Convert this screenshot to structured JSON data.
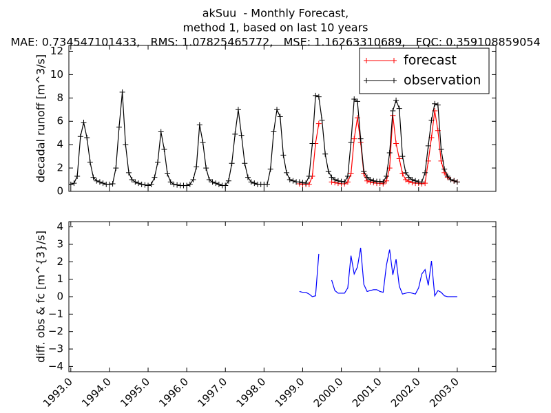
{
  "chart_data": [
    {
      "type": "line",
      "title": "akSuu  - Monthly Forecast,",
      "subtitle": [
        "method 1, based on last 10 years",
        "MAE: 0.734547101433,   RMS: 1.07825465772,   MSE: 1.16263310689,   FQC: 0.359108859054"
      ],
      "y_label": "decadal runoff [m^3/s]",
      "xlim": [
        1992.95,
        2004.0
      ],
      "xticks": [
        1993,
        1994,
        1995,
        1996,
        1997,
        1998,
        1999,
        2000,
        2001,
        2002,
        2003
      ],
      "ylim": [
        0,
        12.5
      ],
      "yticks": [
        0,
        2,
        4,
        6,
        8,
        10,
        12
      ],
      "legend": "upper right",
      "series": [
        {
          "name": "forecast",
          "color": "#ff0000",
          "marker": "+",
          "x": [
            1998.917,
            1999.0,
            1999.083,
            1999.167,
            1999.25,
            1999.333,
            1999.417,
            1999.5,
            1999.583,
            1999.667,
            1999.75,
            1999.833,
            1999.917,
            2000.0,
            2000.083,
            2000.167,
            2000.25,
            2000.333,
            2000.417,
            2000.5,
            2000.583,
            2000.667,
            2000.75,
            2000.833,
            2000.917,
            2001.0,
            2001.083,
            2001.167,
            2001.25,
            2001.333,
            2001.417,
            2001.5,
            2001.583,
            2001.667,
            2001.75,
            2001.833,
            2001.917,
            2002.0,
            2002.083,
            2002.167,
            2002.25,
            2002.333,
            2002.417,
            2002.5,
            2002.583,
            2002.667,
            2002.75,
            2002.833,
            2002.917,
            2003.0
          ],
          "values": [
            0.65,
            0.6,
            0.6,
            0.6,
            1.3,
            4.1,
            5.8,
            null,
            null,
            null,
            0.8,
            0.75,
            0.7,
            0.65,
            0.65,
            0.8,
            1.5,
            4.5,
            6.3,
            4.2,
            1.5,
            0.9,
            0.8,
            0.75,
            0.7,
            0.7,
            0.65,
            0.9,
            2.0,
            6.5,
            4.1,
            2.8,
            1.5,
            1.0,
            0.85,
            0.75,
            0.7,
            0.7,
            0.65,
            0.7,
            2.6,
            4.6,
            6.9,
            5.2,
            2.6,
            1.6,
            1.2,
            1.0,
            0.9,
            0.8
          ]
        },
        {
          "name": "observation",
          "color": "#000000",
          "marker": "+",
          "x": [
            1992.917,
            1993.0,
            1993.083,
            1993.167,
            1993.25,
            1993.333,
            1993.417,
            1993.5,
            1993.583,
            1993.667,
            1993.75,
            1993.833,
            1993.917,
            1994.0,
            1994.083,
            1994.167,
            1994.25,
            1994.333,
            1994.417,
            1994.5,
            1994.583,
            1994.667,
            1994.75,
            1994.833,
            1994.917,
            1995.0,
            1995.083,
            1995.167,
            1995.25,
            1995.333,
            1995.417,
            1995.5,
            1995.583,
            1995.667,
            1995.75,
            1995.833,
            1995.917,
            1996.0,
            1996.083,
            1996.167,
            1996.25,
            1996.333,
            1996.417,
            1996.5,
            1996.583,
            1996.667,
            1996.75,
            1996.833,
            1996.917,
            1997.0,
            1997.083,
            1997.167,
            1997.25,
            1997.333,
            1997.417,
            1997.5,
            1997.583,
            1997.667,
            1997.75,
            1997.833,
            1997.917,
            1998.0,
            1998.083,
            1998.167,
            1998.25,
            1998.333,
            1998.417,
            1998.5,
            1998.583,
            1998.667,
            1998.75,
            1998.833,
            1998.917,
            1999.0,
            1999.083,
            1999.167,
            1999.25,
            1999.333,
            1999.417,
            1999.5,
            1999.583,
            1999.667,
            1999.75,
            1999.833,
            1999.917,
            2000.0,
            2000.083,
            2000.167,
            2000.25,
            2000.333,
            2000.417,
            2000.5,
            2000.583,
            2000.667,
            2000.75,
            2000.833,
            2000.917,
            2001.0,
            2001.083,
            2001.167,
            2001.25,
            2001.333,
            2001.417,
            2001.5,
            2001.583,
            2001.667,
            2001.75,
            2001.833,
            2001.917,
            2002.0,
            2002.083,
            2002.167,
            2002.25,
            2002.333,
            2002.417,
            2002.5,
            2002.583,
            2002.667,
            2002.75,
            2002.833,
            2002.917,
            2003.0
          ],
          "values": [
            0.6,
            0.6,
            0.7,
            1.3,
            4.7,
            5.9,
            4.6,
            2.5,
            1.2,
            0.9,
            0.8,
            0.7,
            0.6,
            0.6,
            0.65,
            2.0,
            5.5,
            8.5,
            4.0,
            1.6,
            1.0,
            0.8,
            0.7,
            0.6,
            0.55,
            0.5,
            0.6,
            1.2,
            2.5,
            5.1,
            3.6,
            1.5,
            0.8,
            0.6,
            0.55,
            0.5,
            0.5,
            0.5,
            0.6,
            1.0,
            2.1,
            5.7,
            4.2,
            2.0,
            1.0,
            0.8,
            0.7,
            0.6,
            0.5,
            0.5,
            0.9,
            2.4,
            4.9,
            7.0,
            4.8,
            2.4,
            1.2,
            0.8,
            0.7,
            0.6,
            0.6,
            0.6,
            0.6,
            1.9,
            5.1,
            7.0,
            6.4,
            3.1,
            1.6,
            1.0,
            0.9,
            0.8,
            0.8,
            0.75,
            0.7,
            1.3,
            4.1,
            8.2,
            8.1,
            6.1,
            3.2,
            1.7,
            1.2,
            1.0,
            0.9,
            0.85,
            0.8,
            1.3,
            4.2,
            7.9,
            7.7,
            4.5,
            1.7,
            1.2,
            1.0,
            0.9,
            0.85,
            0.85,
            0.8,
            1.3,
            3.3,
            6.9,
            7.8,
            7.1,
            3.0,
            1.6,
            1.2,
            1.0,
            0.9,
            0.8,
            0.8,
            1.6,
            3.9,
            6.1,
            7.5,
            7.4,
            3.6,
            1.9,
            1.3,
            1.0,
            0.9,
            0.8
          ]
        }
      ]
    },
    {
      "type": "line",
      "y_label": "diff. obs & fc [m^{3}/s]",
      "xlim": [
        1992.95,
        2004.0
      ],
      "xticks": [
        {
          "value": 1993,
          "label": "1993.0"
        },
        {
          "value": 1994,
          "label": "1994.0"
        },
        {
          "value": 1995,
          "label": "1995.0"
        },
        {
          "value": 1996,
          "label": "1996.0"
        },
        {
          "value": 1997,
          "label": "1997.0"
        },
        {
          "value": 1998,
          "label": "1998.0"
        },
        {
          "value": 1999,
          "label": "1999.0"
        },
        {
          "value": 2000,
          "label": "2000.0"
        },
        {
          "value": 2001,
          "label": "2001.0"
        },
        {
          "value": 2002,
          "label": "2002.0"
        },
        {
          "value": 2003,
          "label": "2003.0"
        }
      ],
      "ylim": [
        -4.3,
        4.3
      ],
      "yticks": [
        {
          "value": -4,
          "label": "−4"
        },
        {
          "value": -3,
          "label": "−3"
        },
        {
          "value": -2,
          "label": "−2"
        },
        {
          "value": -1,
          "label": "−1"
        },
        0,
        1,
        2,
        3,
        4
      ],
      "series": [
        {
          "color": "#0000ff",
          "x": [
            1998.917,
            1999.0,
            1999.083,
            1999.167,
            1999.25,
            1999.333,
            1999.417,
            1999.5,
            1999.583,
            1999.667,
            1999.75,
            1999.833,
            1999.917,
            2000.0,
            2000.083,
            2000.167,
            2000.25,
            2000.333,
            2000.417,
            2000.5,
            2000.583,
            2000.667,
            2000.75,
            2000.833,
            2000.917,
            2001.0,
            2001.083,
            2001.167,
            2001.25,
            2001.333,
            2001.417,
            2001.5,
            2001.583,
            2001.667,
            2001.75,
            2001.833,
            2001.917,
            2002.0,
            2002.083,
            2002.167,
            2002.25,
            2002.333,
            2002.417,
            2002.5,
            2002.583,
            2002.667,
            2002.75,
            2002.833,
            2002.917,
            2003.0
          ],
          "values": [
            0.3,
            0.25,
            0.25,
            0.15,
            0.0,
            0.05,
            2.45,
            null,
            null,
            null,
            0.95,
            0.35,
            0.2,
            0.2,
            0.2,
            0.5,
            2.35,
            1.3,
            1.7,
            2.8,
            0.7,
            0.3,
            0.35,
            0.4,
            0.4,
            0.3,
            0.25,
            1.8,
            2.7,
            1.25,
            2.15,
            0.6,
            0.15,
            0.2,
            0.25,
            0.2,
            0.15,
            0.5,
            1.3,
            1.55,
            0.65,
            2.05,
            0.05,
            0.35,
            0.25,
            0.05,
            0.0,
            0.0,
            0.0,
            0.0
          ]
        }
      ]
    }
  ]
}
